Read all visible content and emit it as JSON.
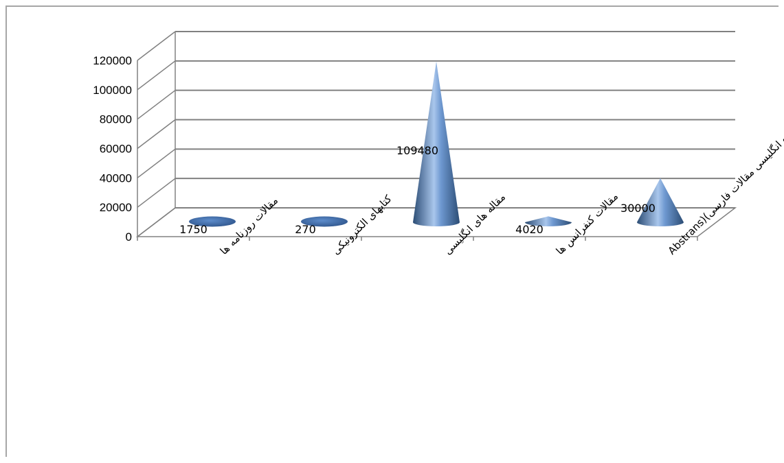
{
  "chart_data": {
    "type": "bar",
    "shape": "cone-3d",
    "categories": [
      "مقالات روزنامه ها",
      "کتابهای الکترونیکی",
      "مقاله های انگلیسی",
      "مقالات کنفرانس ها",
      "چکیده انگلیسی مقالات فارسی)(Abstrans"
    ],
    "values": [
      1750,
      270,
      109480,
      4020,
      30000
    ],
    "data_labels": [
      "1750",
      "270",
      "109480",
      "4020",
      "30000"
    ],
    "ylim": [
      0,
      120000
    ],
    "yticks": [
      "0",
      "20000",
      "40000",
      "60000",
      "80000",
      "100000",
      "120000"
    ],
    "grid": true,
    "legend": "none",
    "title": "",
    "xlabel": "",
    "ylabel": "",
    "colors": {
      "cone_light": "#a9c6ec",
      "cone_mid": "#4f81bd",
      "cone_dark": "#2c4d75",
      "grid": "#808080"
    }
  }
}
